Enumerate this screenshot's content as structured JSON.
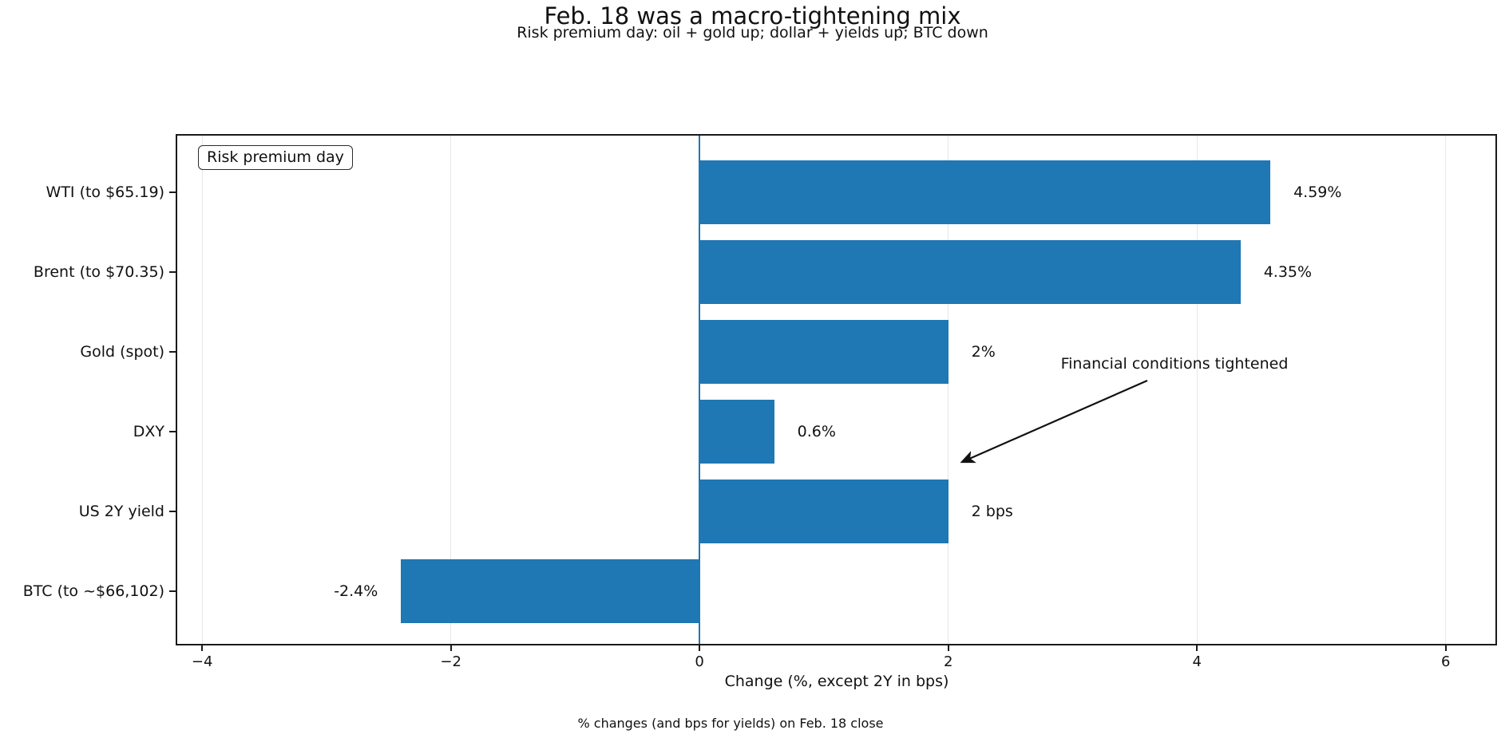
{
  "chart_data": {
    "type": "bar",
    "orientation": "horizontal",
    "title": "Feb. 18 was a macro-tightening mix",
    "subtitle": "Risk premium day: oil + gold up; dollar + yields up; BTC down",
    "categories": [
      "WTI (to $65.19)",
      "Brent (to $70.35)",
      "Gold (spot)",
      "DXY",
      "US 2Y yield",
      "BTC (to ~$66,102)"
    ],
    "values": [
      4.59,
      4.35,
      2,
      0.6,
      2,
      -2.4
    ],
    "value_labels": [
      "4.59%",
      "4.35%",
      "2%",
      "0.6%",
      "2 bps",
      "-2.4%"
    ],
    "xlabel": "Change (%, except 2Y in bps)",
    "xlim": [
      -4.2,
      6.4
    ],
    "xticks": [
      -4,
      -2,
      0,
      2,
      4,
      6
    ],
    "xtick_labels": [
      "−4",
      "−2",
      "0",
      "2",
      "4",
      "6"
    ],
    "grid": true,
    "grid_color": "#e7e7e7",
    "bar_color": "#1f77b4",
    "zero_line_color": "#1f77b4",
    "legend_label": "Risk premium day",
    "legend_position": "upper-left",
    "annotation": "Financial conditions tightened",
    "footnote": "% changes (and bps for yields) on Feb. 18 close"
  }
}
